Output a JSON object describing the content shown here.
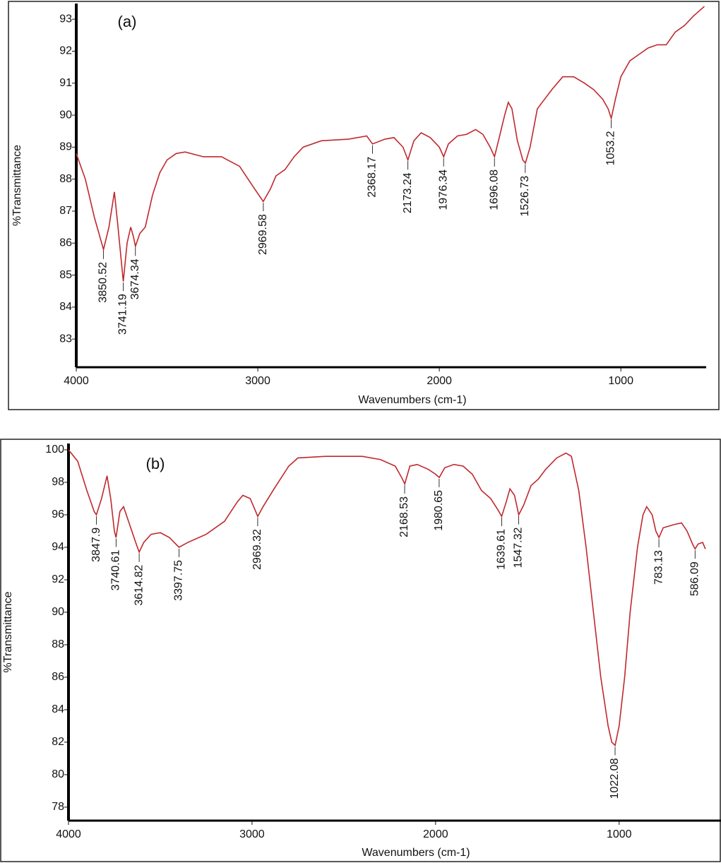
{
  "chart_data": [
    {
      "type": "line",
      "title": "(a)",
      "xlabel": "Wavenumbers (cm-1)",
      "ylabel": "%Transmittance",
      "color": "#c0282d",
      "xlim": [
        4000,
        530
      ],
      "xticks": [
        4000,
        3000,
        2000,
        1000
      ],
      "ylim": [
        82.12,
        93.49
      ],
      "yticks": [
        83,
        84,
        85,
        86,
        87,
        88,
        89,
        90,
        91,
        92,
        93
      ],
      "x": [
        4000,
        3950,
        3900,
        3850,
        3820,
        3790,
        3770,
        3741,
        3720,
        3700,
        3685,
        3674,
        3650,
        3620,
        3580,
        3540,
        3500,
        3450,
        3400,
        3300,
        3200,
        3100,
        3030,
        2970,
        2930,
        2900,
        2850,
        2800,
        2750,
        2650,
        2500,
        2400,
        2368,
        2300,
        2250,
        2200,
        2173,
        2140,
        2100,
        2050,
        2000,
        1976,
        1950,
        1900,
        1850,
        1800,
        1760,
        1720,
        1696,
        1670,
        1640,
        1620,
        1600,
        1570,
        1540,
        1526,
        1500,
        1460,
        1420,
        1380,
        1320,
        1260,
        1200,
        1150,
        1100,
        1070,
        1053,
        1030,
        1000,
        950,
        900,
        850,
        800,
        750,
        700,
        650,
        600,
        540
      ],
      "values": [
        88.8,
        88.0,
        86.8,
        85.8,
        86.5,
        87.6,
        86.5,
        84.8,
        86.0,
        86.5,
        86.2,
        85.9,
        86.3,
        86.5,
        87.5,
        88.2,
        88.6,
        88.8,
        88.85,
        88.7,
        88.7,
        88.4,
        87.8,
        87.3,
        87.7,
        88.1,
        88.3,
        88.7,
        89.0,
        89.2,
        89.25,
        89.35,
        89.1,
        89.25,
        89.3,
        89.0,
        88.6,
        89.2,
        89.45,
        89.3,
        89.0,
        88.7,
        89.1,
        89.35,
        89.4,
        89.55,
        89.4,
        89.0,
        88.7,
        89.3,
        90.0,
        90.4,
        90.2,
        89.2,
        88.6,
        88.5,
        89.0,
        90.2,
        90.5,
        90.8,
        91.2,
        91.2,
        91.0,
        90.8,
        90.5,
        90.2,
        89.9,
        90.5,
        91.2,
        91.7,
        91.9,
        92.1,
        92.2,
        92.2,
        92.6,
        92.8,
        93.1,
        93.4
      ],
      "peaks": [
        3850.52,
        3741.19,
        3674.34,
        2969.58,
        2368.17,
        2173.24,
        1976.34,
        1696.08,
        1526.73,
        1053.2
      ]
    },
    {
      "type": "line",
      "title": "(b)",
      "xlabel": "Wavenumbers (cm-1)",
      "ylabel": "%Transmittance",
      "color": "#c0282d",
      "xlim": [
        4000,
        445
      ],
      "xticks": [
        4000,
        3000,
        2000,
        1000
      ],
      "ylim": [
        77.17,
        100.39
      ],
      "yticks": [
        78,
        80,
        82,
        84,
        86,
        88,
        90,
        92,
        94,
        96,
        98,
        100
      ],
      "x": [
        4000,
        3950,
        3900,
        3860,
        3848,
        3820,
        3790,
        3770,
        3750,
        3741,
        3720,
        3700,
        3670,
        3640,
        3615,
        3590,
        3550,
        3500,
        3450,
        3398,
        3350,
        3250,
        3150,
        3080,
        3050,
        3010,
        2980,
        2969,
        2940,
        2880,
        2800,
        2750,
        2600,
        2400,
        2300,
        2220,
        2185,
        2168,
        2140,
        2100,
        2040,
        2000,
        1980,
        1950,
        1900,
        1850,
        1800,
        1750,
        1700,
        1660,
        1640,
        1615,
        1595,
        1570,
        1547,
        1520,
        1480,
        1440,
        1400,
        1340,
        1290,
        1260,
        1220,
        1180,
        1140,
        1100,
        1060,
        1040,
        1022,
        1000,
        970,
        940,
        900,
        870,
        850,
        820,
        800,
        783,
        760,
        700,
        660,
        630,
        600,
        586,
        570,
        545,
        530
      ],
      "values": [
        100.0,
        99.3,
        97.5,
        96.2,
        96.0,
        97.0,
        98.4,
        97.0,
        95.0,
        94.6,
        96.2,
        96.5,
        95.5,
        94.5,
        93.7,
        94.3,
        94.8,
        94.9,
        94.6,
        94.0,
        94.3,
        94.8,
        95.6,
        96.8,
        97.2,
        97.0,
        96.2,
        95.9,
        96.5,
        97.6,
        99.0,
        99.5,
        99.6,
        99.6,
        99.4,
        99.0,
        98.3,
        97.9,
        99.0,
        99.1,
        98.8,
        98.5,
        98.3,
        98.9,
        99.1,
        99.0,
        98.5,
        97.5,
        97.0,
        96.3,
        95.9,
        96.8,
        97.6,
        97.2,
        96.0,
        96.6,
        97.8,
        98.2,
        98.8,
        99.5,
        99.8,
        99.6,
        97.5,
        94.0,
        90.0,
        86.0,
        83.0,
        82.0,
        81.8,
        83.0,
        86.0,
        90.0,
        94.0,
        96.0,
        96.5,
        96.0,
        95.0,
        94.6,
        95.2,
        95.4,
        95.5,
        95.0,
        94.2,
        93.9,
        94.2,
        94.3,
        93.9
      ],
      "peaks": [
        3847.9,
        3740.61,
        3614.82,
        3397.75,
        2969.32,
        2168.53,
        1980.65,
        1639.61,
        1547.32,
        1022.08,
        783.13,
        586.09
      ]
    }
  ]
}
